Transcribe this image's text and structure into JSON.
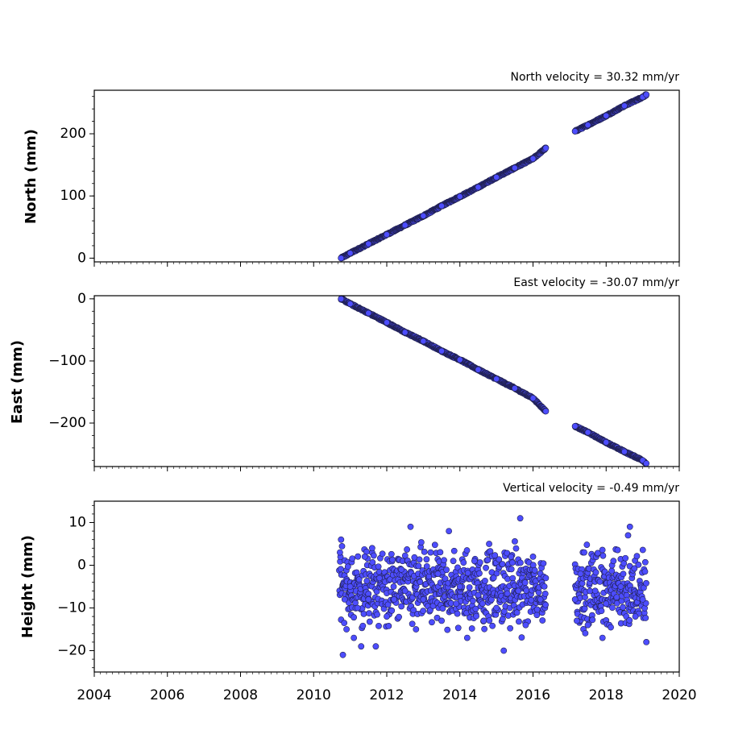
{
  "chart_data": {
    "type": "scatter",
    "shared_x": {
      "ticks": [
        2004,
        2006,
        2008,
        2010,
        2012,
        2014,
        2016,
        2018,
        2020
      ],
      "tick_labels": [
        "2004",
        "2006",
        "2008",
        "2010",
        "2012",
        "2014",
        "2016",
        "2018",
        "2020"
      ],
      "xlim": [
        2004,
        2020
      ],
      "minor_tick_step_years": 0.1666667
    },
    "marker_color": "#4d4dff",
    "marker_edge_color": "#202050",
    "panels": [
      {
        "id": "north",
        "ylabel": "North (mm)",
        "annotation": "North velocity = 30.32 mm/yr",
        "velocity_mm_per_yr": 30.32,
        "ylim": [
          -6,
          270
        ],
        "ticks": [
          0,
          100,
          200
        ],
        "tick_labels": [
          "0",
          "100",
          "200"
        ],
        "minor_tick_step": 20,
        "x": [
          2010.75,
          2011.0,
          2011.5,
          2012.0,
          2012.5,
          2013.0,
          2013.5,
          2014.0,
          2014.5,
          2015.0,
          2015.5,
          2016.0,
          2016.35,
          2017.15,
          2017.5,
          2018.0,
          2018.5,
          2019.0,
          2019.1
        ],
        "y": [
          0,
          8,
          23,
          38,
          53,
          68,
          84,
          99,
          114,
          130,
          145,
          160,
          177,
          204,
          214,
          229,
          245,
          259,
          263
        ]
      },
      {
        "id": "east",
        "ylabel": "East (mm)",
        "annotation": "East velocity = -30.07 mm/yr",
        "velocity_mm_per_yr": -30.07,
        "ylim": [
          -270,
          5
        ],
        "ticks": [
          0,
          -100,
          -200
        ],
        "tick_labels": [
          "0",
          "−100",
          "−200"
        ],
        "minor_tick_step": 20,
        "x": [
          2010.75,
          2011.0,
          2011.5,
          2012.0,
          2012.5,
          2013.0,
          2013.5,
          2014.0,
          2014.5,
          2015.0,
          2015.5,
          2016.0,
          2016.35,
          2017.15,
          2017.5,
          2018.0,
          2018.5,
          2019.0,
          2019.1
        ],
        "y": [
          0,
          -8,
          -23,
          -38,
          -54,
          -68,
          -84,
          -98,
          -114,
          -129,
          -144,
          -160,
          -181,
          -205,
          -215,
          -231,
          -246,
          -260,
          -265
        ]
      },
      {
        "id": "height",
        "ylabel": "Height (mm)",
        "annotation": "Vertical velocity = -0.49 mm/yr",
        "velocity_mm_per_yr": -0.49,
        "ylim": [
          -25,
          15
        ],
        "ticks": [
          10,
          0,
          -10,
          -20
        ],
        "tick_labels": [
          "10",
          "0",
          "−10",
          "−20"
        ],
        "minor_tick_step": 2,
        "x": [
          2010.72,
          2010.75,
          2010.8,
          2010.85,
          2010.9,
          2011.0,
          2011.1,
          2011.2,
          2011.3,
          2011.4,
          2011.5,
          2011.6,
          2011.7,
          2011.8,
          2012.0,
          2012.2,
          2012.4,
          2012.5,
          2012.65,
          2012.8,
          2013.0,
          2013.2,
          2013.4,
          2013.5,
          2013.7,
          2013.9,
          2014.0,
          2014.2,
          2014.4,
          2014.5,
          2014.65,
          2014.8,
          2015.0,
          2015.2,
          2015.4,
          2015.6,
          2015.65,
          2015.8,
          2016.0,
          2016.2,
          2016.35,
          2017.15,
          2017.2,
          2017.3,
          2017.4,
          2017.5,
          2017.7,
          2017.9,
          2018.0,
          2018.2,
          2018.4,
          2018.6,
          2018.65,
          2018.8,
          2019.0,
          2019.1
        ],
        "y": [
          3,
          6,
          -21,
          -8,
          -15,
          -5,
          -17,
          -10,
          -19,
          2,
          -8,
          4,
          -19,
          -3,
          -12,
          -8,
          -1,
          -6,
          9,
          -15,
          -8,
          3,
          -2,
          -13,
          8,
          -9,
          -5,
          -17,
          1,
          -7,
          -13,
          5,
          -10,
          -20,
          2,
          -6,
          11,
          -14,
          2,
          -8,
          -3,
          -8,
          -13,
          -2,
          3,
          -14,
          -6,
          -17,
          -9,
          1,
          -5,
          7,
          9,
          -12,
          -8,
          -18
        ]
      }
    ]
  }
}
